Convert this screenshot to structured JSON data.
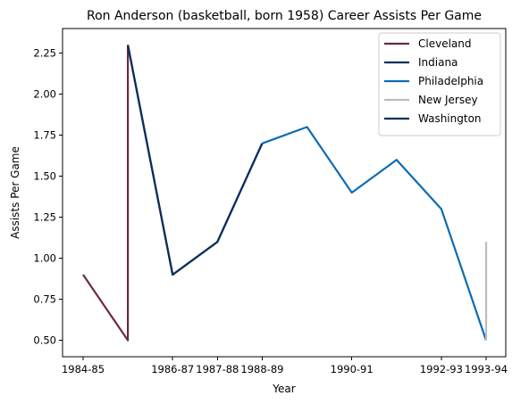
{
  "chart_data": {
    "type": "line",
    "title": "Ron Anderson (basketball, born 1958) Career Assists Per Game",
    "xlabel": "Year",
    "ylabel": "Assists Per Game",
    "x_categories": [
      "1984-85",
      "1985-86",
      "1986-87",
      "1987-88",
      "1988-89",
      "1989-90",
      "1990-91",
      "1991-92",
      "1992-93",
      "1993-94"
    ],
    "x_tick_labels": [
      "1984-85",
      "1986-87",
      "1987-88",
      "1988-89",
      "1990-91",
      "1992-93",
      "1993-94"
    ],
    "ylim": [
      0.4,
      2.4
    ],
    "y_ticks": [
      0.5,
      0.75,
      1.0,
      1.25,
      1.5,
      1.75,
      2.0,
      2.25
    ],
    "y_tick_labels": [
      "0.50",
      "0.75",
      "1.00",
      "1.25",
      "1.50",
      "1.75",
      "2.00",
      "2.25"
    ],
    "grid": false,
    "legend_position": "top-right",
    "series": [
      {
        "name": "Cleveland",
        "color": "#6b2a3f",
        "points": [
          [
            "1984-85",
            0.9
          ],
          [
            "1985-86",
            0.5
          ],
          [
            "1985-86",
            2.3
          ]
        ]
      },
      {
        "name": "Indiana",
        "color": "#082e5c",
        "points": [
          [
            "1985-86",
            2.3
          ],
          [
            "1986-87",
            0.9
          ],
          [
            "1987-88",
            1.1
          ],
          [
            "1988-89",
            1.7
          ]
        ]
      },
      {
        "name": "Philadelphia",
        "color": "#0c6cb4",
        "points": [
          [
            "1988-89",
            1.7
          ],
          [
            "1989-90",
            1.8
          ],
          [
            "1990-91",
            1.4
          ],
          [
            "1991-92",
            1.6
          ],
          [
            "1992-93",
            1.3
          ],
          [
            "1993-94",
            0.5
          ]
        ]
      },
      {
        "name": "New Jersey",
        "color": "#bcbcbc",
        "points": [
          [
            "1993-94",
            0.5
          ],
          [
            "1993-94",
            1.1
          ]
        ]
      },
      {
        "name": "Washington",
        "color": "#082e5c",
        "points": [
          [
            "1985-86",
            2.3
          ],
          [
            "1986-87",
            0.9
          ],
          [
            "1987-88",
            1.1
          ],
          [
            "1988-89",
            1.7
          ]
        ]
      }
    ]
  }
}
